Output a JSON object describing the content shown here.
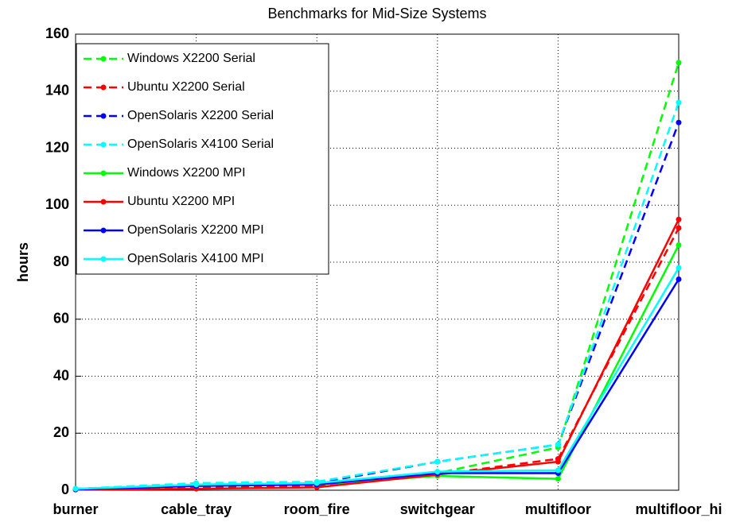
{
  "chart_data": {
    "type": "line",
    "title": "Benchmarks for Mid-Size Systems",
    "y_label": "hours",
    "categories": [
      "burner",
      "cable_tray",
      "room_fire",
      "switchgear",
      "multifloor",
      "multifloor_hi"
    ],
    "ylim": [
      0,
      160
    ],
    "yticks": [
      0,
      20,
      40,
      60,
      80,
      100,
      120,
      140,
      160
    ],
    "grid": true,
    "legend": "upper left",
    "series": [
      {
        "name": "Windows X2200 Serial",
        "color": "#00ff00",
        "style": "dashed",
        "values": [
          0.5,
          2,
          2.5,
          6,
          15,
          150
        ]
      },
      {
        "name": "Ubuntu X2200 Serial",
        "color": "#ff0000",
        "style": "dashed",
        "values": [
          0.3,
          1,
          1.5,
          5.5,
          11,
          92
        ]
      },
      {
        "name": "OpenSolaris X2200 Serial",
        "color": "#0000ff",
        "style": "dashed",
        "values": [
          0.5,
          2,
          2.5,
          10,
          16,
          129
        ]
      },
      {
        "name": "OpenSolaris X4100 Serial",
        "color": "#00ffff",
        "style": "dashed",
        "values": [
          0.5,
          2.5,
          3,
          10,
          16,
          136
        ]
      },
      {
        "name": "Windows X2200 MPI",
        "color": "#00ff00",
        "style": "solid",
        "values": [
          0.3,
          1.5,
          2,
          5,
          4,
          86
        ]
      },
      {
        "name": "Ubuntu X2200 MPI",
        "color": "#ff0000",
        "style": "solid",
        "values": [
          0.2,
          0.5,
          1,
          5.5,
          10,
          95
        ]
      },
      {
        "name": "OpenSolaris X2200 MPI",
        "color": "#0000ff",
        "style": "solid",
        "values": [
          0.3,
          1.5,
          2,
          6,
          6,
          74
        ]
      },
      {
        "name": "OpenSolaris X4100 MPI",
        "color": "#00ffff",
        "style": "solid",
        "values": [
          0.5,
          2,
          2.5,
          6.5,
          7,
          78
        ]
      }
    ]
  }
}
